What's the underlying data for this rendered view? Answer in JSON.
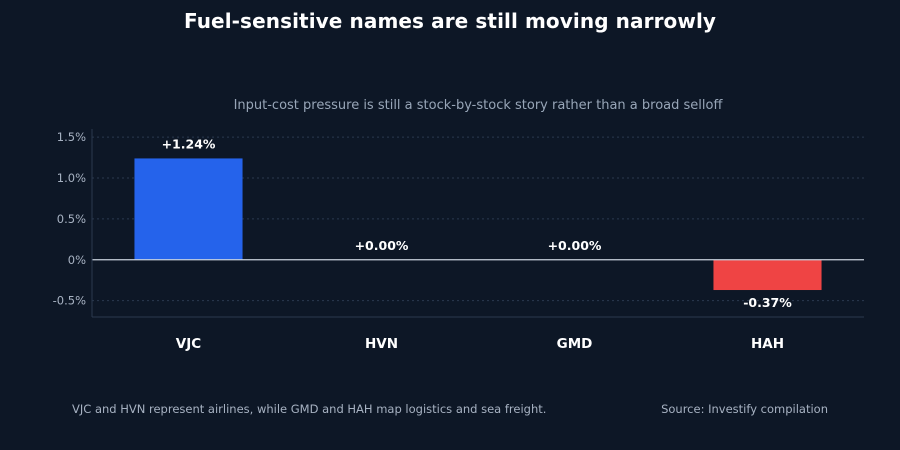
{
  "title": "Fuel-sensitive names are still moving narrowly",
  "subtitle": "Input-cost pressure is still a stock-by-stock story rather than a broad selloff",
  "footnote": "VJC and HVN represent airlines, while GMD and HAH map logistics and sea freight.",
  "source": "Source: Investify compilation",
  "colors": {
    "background": "#0d1726",
    "positive": "#2563eb",
    "negative": "#ef4444",
    "grid": "#2b3a4f",
    "zero_line": "#c9d2de",
    "tick_text": "#a7b2c2",
    "label_text": "#ffffff"
  },
  "chart_data": {
    "type": "bar",
    "title": "Fuel-sensitive names are still moving narrowly",
    "subtitle": "Input-cost pressure is still a stock-by-stock story rather than a broad selloff",
    "xlabel": "",
    "ylabel": "",
    "categories": [
      "VJC",
      "HVN",
      "GMD",
      "HAH"
    ],
    "values": [
      1.24,
      0.0,
      0.0,
      -0.37
    ],
    "data_labels": [
      "+1.24%",
      "+0.00%",
      "+0.00%",
      "-0.37%"
    ],
    "ylim": [
      -0.7,
      1.6
    ],
    "yticks": [
      -0.5,
      0,
      0.5,
      1.0,
      1.5
    ],
    "ytick_labels": [
      "-0.5%",
      "0%",
      "0.5%",
      "1.0%",
      "1.5%"
    ],
    "grid": true,
    "legend": "none"
  }
}
